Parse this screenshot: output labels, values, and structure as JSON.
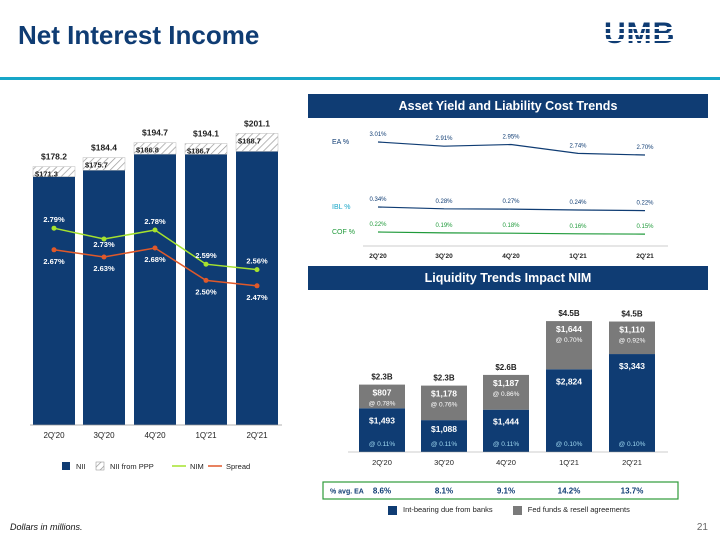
{
  "page": {
    "title": "Net Interest Income",
    "logo_text": "UMB",
    "footer": "Dollars in millions.",
    "page_number": "21",
    "colors": {
      "navy": "#0f3c73",
      "teal": "#17a6c8",
      "gray": "#7a7a7a",
      "lime": "#a6e22e",
      "orange": "#e0592a"
    }
  },
  "right_top": {
    "banner": "Asset Yield and Liability Cost Trends"
  },
  "right_bottom": {
    "banner": "Liquidity Trends Impact NIM"
  },
  "bottom_legend": {
    "items": [
      {
        "label": "Int-bearing due from banks",
        "color": "#0f3c73"
      },
      {
        "label": "Fed funds & resell agreements",
        "color": "#7a7a7a"
      }
    ]
  },
  "chart_data": [
    {
      "type": "bar",
      "categories": [
        "2Q'20",
        "3Q'20",
        "4Q'20",
        "1Q'21",
        "2Q'21"
      ],
      "series": [
        {
          "name": "NII",
          "values": [
            171.3,
            175.7,
            186.8,
            186.7,
            188.7
          ]
        },
        {
          "name": "NII from PPP",
          "values": [
            6.9,
            8.7,
            7.9,
            7.4,
            12.4
          ]
        },
        {
          "name": "NIM",
          "values": [
            2.79,
            2.73,
            2.78,
            2.59,
            2.56
          ]
        },
        {
          "name": "Spread",
          "values": [
            2.67,
            2.63,
            2.68,
            2.5,
            2.47
          ]
        }
      ],
      "totals": [
        178.2,
        184.4,
        194.7,
        194.1,
        201.1
      ],
      "labels": {
        "totals": [
          "$178.2",
          "$184.4",
          "$194.7",
          "$194.1",
          "$201.1"
        ],
        "nii": [
          "$171.3",
          "$175.7",
          "$186.8",
          "$186.7",
          "$188.7"
        ],
        "nim": [
          "2.79%",
          "2.73%",
          "2.78%",
          "2.59%",
          "2.56%"
        ],
        "spread": [
          "2.67%",
          "2.63%",
          "2.68%",
          "2.50%",
          "2.47%"
        ]
      },
      "legend": [
        "NII",
        "NII from PPP",
        "NIM",
        "Spread"
      ]
    },
    {
      "type": "line",
      "categories": [
        "2Q'20",
        "3Q'20",
        "4Q'20",
        "1Q'21",
        "2Q'21"
      ],
      "series": [
        {
          "name": "EA %",
          "values": [
            3.01,
            2.91,
            2.95,
            2.74,
            2.7
          ],
          "labels": [
            "3.01%",
            "2.91%",
            "2.95%",
            "2.74%",
            "2.70%"
          ]
        },
        {
          "name": "IBL %",
          "values": [
            0.34,
            0.28,
            0.27,
            0.24,
            0.22
          ],
          "labels": [
            "0.34%",
            "0.28%",
            "0.27%",
            "0.24%",
            "0.22%"
          ]
        },
        {
          "name": "COF %",
          "values": [
            0.22,
            0.19,
            0.18,
            0.16,
            0.15
          ],
          "labels": [
            "0.22%",
            "0.19%",
            "0.18%",
            "0.16%",
            "0.15%"
          ]
        }
      ]
    },
    {
      "type": "bar",
      "categories": [
        "2Q'20",
        "3Q'20",
        "4Q'20",
        "1Q'21",
        "2Q'21"
      ],
      "series": [
        {
          "name": "Int-bearing due from banks",
          "values": [
            1493,
            1088,
            1444,
            2824,
            3343
          ],
          "labels": [
            "$1,493",
            "$1,088",
            "$1,444",
            "$2,824",
            "$3,343"
          ],
          "rates": [
            "@ 0.11%",
            "@ 0.11%",
            "@ 0.11%",
            "@ 0.10%",
            "@ 0.10%"
          ]
        },
        {
          "name": "Fed funds & resell agreements",
          "values": [
            807,
            1178,
            1187,
            1644,
            1110
          ],
          "labels": [
            "$807",
            "$1,178",
            "$1,187",
            "$1,644",
            "$1,110"
          ],
          "rates": [
            "@ 0.78%",
            "@ 0.76%",
            "@ 0.86%",
            "@ 0.70%",
            "@ 0.92%"
          ]
        }
      ],
      "totals": [
        "$2.3B",
        "$2.3B",
        "$2.6B",
        "$4.5B",
        "$4.5B"
      ],
      "avg_ea_label": "% avg. EA",
      "avg_ea": [
        "8.6%",
        "8.1%",
        "9.1%",
        "14.2%",
        "13.7%"
      ]
    }
  ]
}
